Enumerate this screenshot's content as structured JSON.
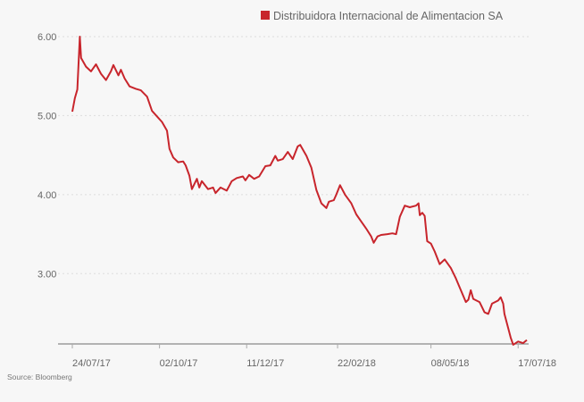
{
  "chart_data": {
    "type": "line",
    "title": "",
    "xlabel": "",
    "ylabel": "",
    "legend": {
      "position": "top-right"
    },
    "grid": {
      "y": true,
      "style": "dotted"
    },
    "ylim": [
      2.11,
      6.0
    ],
    "xlim": [
      "2017-07-24",
      "2018-07-24"
    ],
    "y_ticks": [
      {
        "value": 6,
        "label": "6.00"
      },
      {
        "value": 5,
        "label": "5.00"
      },
      {
        "value": 4,
        "label": "4.00"
      },
      {
        "value": 3,
        "label": "3.00"
      }
    ],
    "x_ticks": [
      {
        "date": "2017-07-24",
        "label": "24/07/17"
      },
      {
        "date": "2017-10-02",
        "label": "02/10/17"
      },
      {
        "date": "2017-12-11",
        "label": "11/12/17"
      },
      {
        "date": "2018-02-22",
        "label": "22/02/18"
      },
      {
        "date": "2018-05-08",
        "label": "08/05/18"
      },
      {
        "date": "2018-07-17",
        "label": "17/07/18"
      }
    ],
    "series": [
      {
        "name": "Distribuidora Internacional de Alimentacion SA",
        "color": "#c8252c",
        "x": [
          "2017-07-24",
          "2017-07-26",
          "2017-07-28",
          "2017-07-30",
          "2017-07-31",
          "2017-08-04",
          "2017-08-08",
          "2017-08-12",
          "2017-08-16",
          "2017-08-20",
          "2017-08-24",
          "2017-08-26",
          "2017-08-30",
          "2017-09-01",
          "2017-09-04",
          "2017-09-08",
          "2017-09-13",
          "2017-09-17",
          "2017-09-22",
          "2017-09-26",
          "2017-09-30",
          "2017-10-04",
          "2017-10-08",
          "2017-10-10",
          "2017-10-13",
          "2017-10-17",
          "2017-10-21",
          "2017-10-23",
          "2017-10-26",
          "2017-10-28",
          "2017-11-01",
          "2017-11-03",
          "2017-11-05",
          "2017-11-10",
          "2017-11-14",
          "2017-11-16",
          "2017-11-20",
          "2017-11-25",
          "2017-11-29",
          "2017-12-03",
          "2017-12-08",
          "2017-12-10",
          "2017-12-13",
          "2017-12-17",
          "2017-12-21",
          "2017-12-26",
          "2017-12-30",
          "2018-01-03",
          "2018-01-05",
          "2018-01-09",
          "2018-01-13",
          "2018-01-17",
          "2018-01-21",
          "2018-01-23",
          "2018-01-28",
          "2018-02-01",
          "2018-02-05",
          "2018-02-09",
          "2018-02-13",
          "2018-02-15",
          "2018-02-19",
          "2018-02-21",
          "2018-02-24",
          "2018-02-28",
          "2018-03-05",
          "2018-03-09",
          "2018-03-13",
          "2018-03-17",
          "2018-03-21",
          "2018-03-23",
          "2018-03-26",
          "2018-03-29",
          "2018-04-03",
          "2018-04-07",
          "2018-04-10",
          "2018-04-13",
          "2018-04-17",
          "2018-04-21",
          "2018-04-26",
          "2018-04-28",
          "2018-04-29",
          "2018-05-01",
          "2018-05-03",
          "2018-05-05",
          "2018-05-08",
          "2018-05-11",
          "2018-05-15",
          "2018-05-19",
          "2018-05-24",
          "2018-05-28",
          "2018-06-01",
          "2018-06-05",
          "2018-06-07",
          "2018-06-09",
          "2018-06-11",
          "2018-06-16",
          "2018-06-20",
          "2018-06-23",
          "2018-06-26",
          "2018-07-01",
          "2018-07-03",
          "2018-07-05",
          "2018-07-06",
          "2018-07-09",
          "2018-07-11",
          "2018-07-13",
          "2018-07-17",
          "2018-07-21",
          "2018-07-24"
        ],
        "values": [
          5.05,
          5.22,
          5.33,
          6.0,
          5.73,
          5.62,
          5.56,
          5.65,
          5.53,
          5.45,
          5.56,
          5.64,
          5.51,
          5.58,
          5.47,
          5.37,
          5.34,
          5.32,
          5.24,
          5.06,
          4.99,
          4.92,
          4.81,
          4.58,
          4.47,
          4.41,
          4.42,
          4.37,
          4.24,
          4.07,
          4.2,
          4.09,
          4.17,
          4.07,
          4.09,
          4.02,
          4.09,
          4.05,
          4.17,
          4.21,
          4.23,
          4.18,
          4.25,
          4.2,
          4.23,
          4.36,
          4.37,
          4.49,
          4.43,
          4.45,
          4.54,
          4.45,
          4.61,
          4.63,
          4.49,
          4.34,
          4.06,
          3.89,
          3.83,
          3.91,
          3.93,
          4.0,
          4.12,
          4.0,
          3.89,
          3.75,
          3.66,
          3.57,
          3.47,
          3.39,
          3.47,
          3.49,
          3.5,
          3.51,
          3.5,
          3.72,
          3.86,
          3.84,
          3.86,
          3.89,
          3.74,
          3.77,
          3.73,
          3.41,
          3.38,
          3.28,
          3.12,
          3.18,
          3.07,
          2.94,
          2.79,
          2.64,
          2.67,
          2.79,
          2.68,
          2.64,
          2.51,
          2.49,
          2.62,
          2.66,
          2.7,
          2.62,
          2.49,
          2.31,
          2.19,
          2.1,
          2.14,
          2.12,
          2.16
        ]
      }
    ],
    "source": "Source: Bloomberg"
  }
}
